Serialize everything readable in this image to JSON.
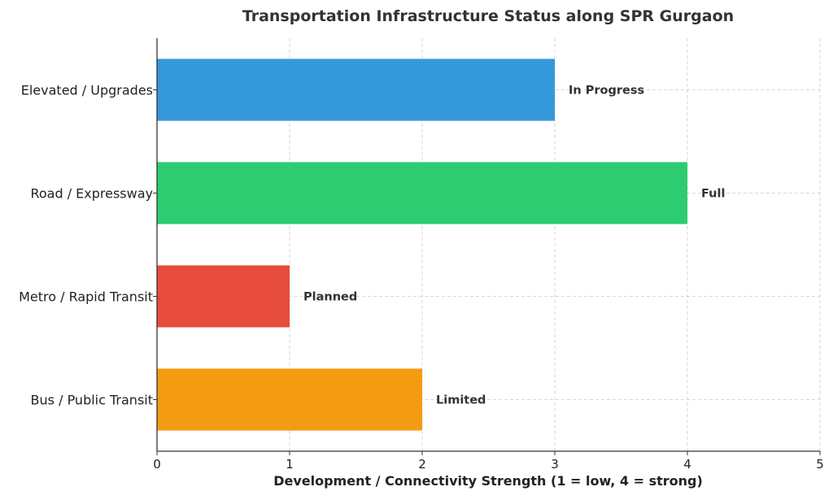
{
  "chart_data": {
    "type": "bar",
    "orientation": "horizontal",
    "title": "Transportation Infrastructure Status along SPR Gurgaon",
    "xlabel": "Development / Connectivity Strength (1 = low, 4 = strong)",
    "ylabel": "",
    "xlim": [
      0,
      5
    ],
    "xticks": [
      "0",
      "1",
      "2",
      "3",
      "4",
      "5"
    ],
    "grid": true,
    "categories": [
      "Bus / Public Transit",
      "Metro / Rapid Transit",
      "Road / Expressway",
      "Elevated / Upgrades"
    ],
    "values": [
      2,
      1,
      4,
      3
    ],
    "bar_labels": [
      "Limited",
      "Planned",
      "Full",
      "In Progress"
    ],
    "colors": [
      "#f39c12",
      "#e74c3c",
      "#2ecc71",
      "#3498db"
    ]
  }
}
